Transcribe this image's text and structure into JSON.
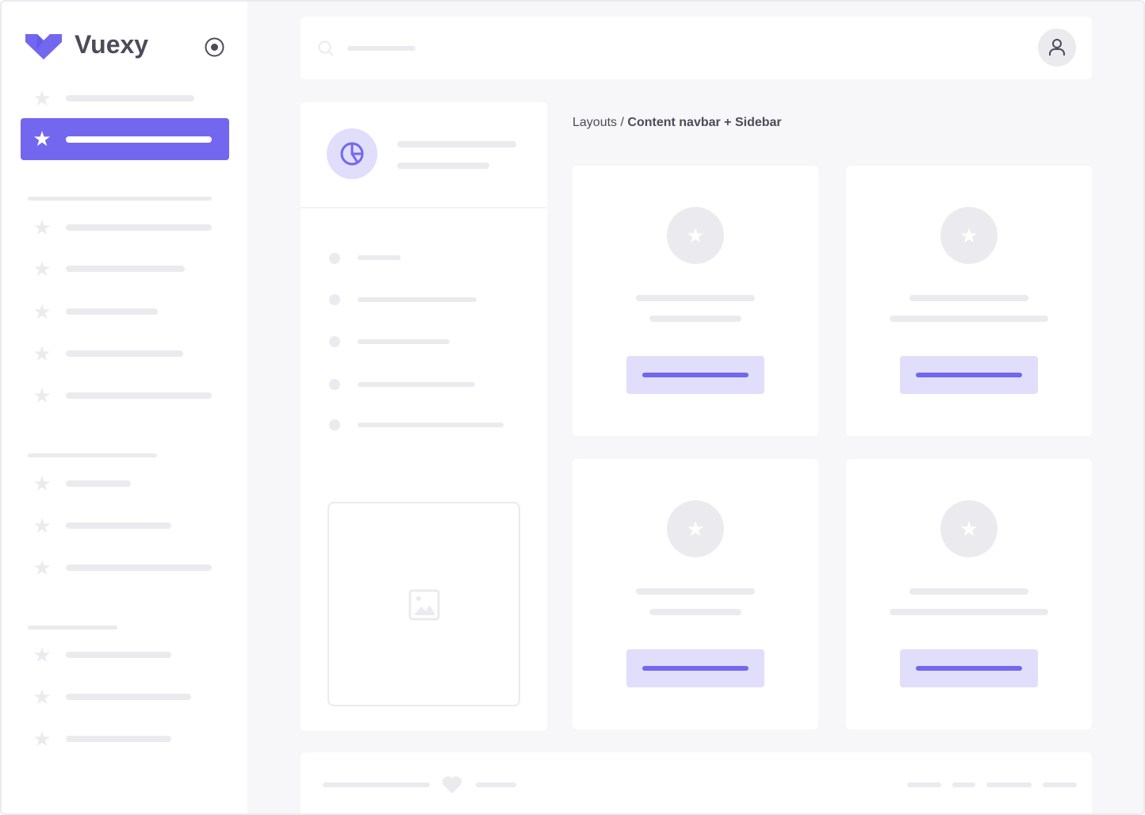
{
  "brand": {
    "name": "Vuexy",
    "logo_icon": "vuexy-v-logo",
    "toggle_icon": "radio-circle-icon"
  },
  "navbar": {
    "search_icon": "search-icon",
    "avatar_icon": "user-icon"
  },
  "breadcrumb": {
    "parent": "Layouts",
    "separator": " / ",
    "current": "Content navbar + Sidebar"
  },
  "side_card": {
    "icon": "pie-chart-icon",
    "image_icon": "image-icon"
  },
  "footer": {
    "icon": "heart-icon"
  },
  "colors": {
    "primary": "#7367f0",
    "primary_light": "#e1defc",
    "placeholder": "#ebebef",
    "background": "#f7f7f9",
    "text": "#4b4b5a"
  }
}
